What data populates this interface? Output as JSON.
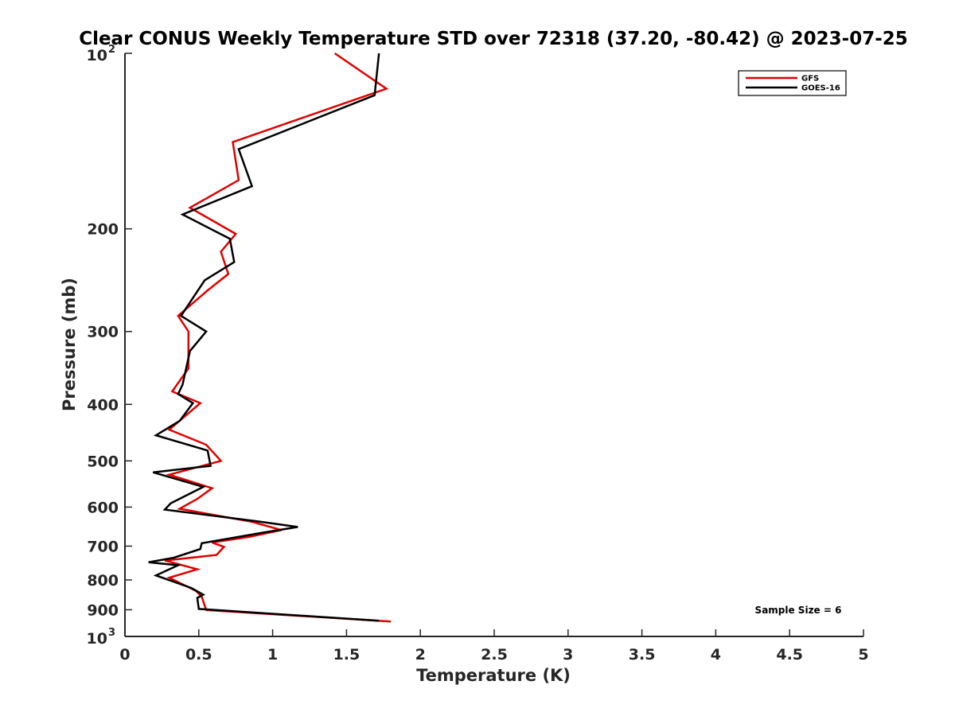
{
  "chart_data": {
    "type": "line",
    "title": "Clear CONUS Weekly Temperature STD over 72318 (37.20, -80.42) @ 2023-07-25",
    "xlabel": "Temperature (K)",
    "ylabel": "Pressure (mb)",
    "xlim": [
      0,
      5
    ],
    "ylim": [
      100,
      1000
    ],
    "y_scale": "log",
    "y_reversed": true,
    "grid": false,
    "legend_position": "top-right",
    "x_ticks": [
      "0",
      "0.5",
      "1",
      "1.5",
      "2",
      "2.5",
      "3",
      "3.5",
      "4",
      "4.5",
      "5"
    ],
    "y_ticks": [
      {
        "value": 100,
        "base": "10",
        "exp": "2"
      },
      {
        "value": 200,
        "label": "200"
      },
      {
        "value": 300,
        "label": "300"
      },
      {
        "value": 400,
        "label": "400"
      },
      {
        "value": 500,
        "label": "500"
      },
      {
        "value": 600,
        "label": "600"
      },
      {
        "value": 700,
        "label": "700"
      },
      {
        "value": 800,
        "label": "800"
      },
      {
        "value": 900,
        "label": "900"
      },
      {
        "value": 1000,
        "base": "10",
        "exp": "3"
      }
    ],
    "annotation": "Sample Size = 6",
    "series": [
      {
        "name": "GFS",
        "color": "#e00000",
        "points": [
          [
            1.42,
            100
          ],
          [
            1.77,
            115
          ],
          [
            0.73,
            142
          ],
          [
            0.77,
            165
          ],
          [
            0.44,
            184
          ],
          [
            0.75,
            204
          ],
          [
            0.65,
            219
          ],
          [
            0.7,
            239
          ],
          [
            0.56,
            255
          ],
          [
            0.36,
            282
          ],
          [
            0.43,
            300
          ],
          [
            0.43,
            347
          ],
          [
            0.32,
            380
          ],
          [
            0.51,
            398
          ],
          [
            0.3,
            442
          ],
          [
            0.55,
            469
          ],
          [
            0.65,
            500
          ],
          [
            0.3,
            528
          ],
          [
            0.59,
            557
          ],
          [
            0.49,
            581
          ],
          [
            0.37,
            604
          ],
          [
            0.86,
            636
          ],
          [
            1.06,
            657
          ],
          [
            0.84,
            675
          ],
          [
            0.59,
            690
          ],
          [
            0.67,
            702
          ],
          [
            0.62,
            725
          ],
          [
            0.27,
            741
          ],
          [
            0.49,
            767
          ],
          [
            0.3,
            793
          ],
          [
            0.48,
            835
          ],
          [
            0.52,
            855
          ],
          [
            0.55,
            901
          ],
          [
            1.8,
            943
          ]
        ]
      },
      {
        "name": "GOES-16",
        "color": "#000000",
        "points": [
          [
            1.72,
            100
          ],
          [
            1.69,
            118
          ],
          [
            0.77,
            146
          ],
          [
            0.86,
            169
          ],
          [
            0.39,
            189
          ],
          [
            0.71,
            208
          ],
          [
            0.74,
            228
          ],
          [
            0.54,
            245
          ],
          [
            0.38,
            282
          ],
          [
            0.55,
            300
          ],
          [
            0.44,
            324
          ],
          [
            0.39,
            370
          ],
          [
            0.36,
            384
          ],
          [
            0.46,
            398
          ],
          [
            0.37,
            427
          ],
          [
            0.21,
            452
          ],
          [
            0.56,
            480
          ],
          [
            0.58,
            510
          ],
          [
            0.19,
            523
          ],
          [
            0.53,
            554
          ],
          [
            0.31,
            591
          ],
          [
            0.27,
            606
          ],
          [
            0.9,
            635
          ],
          [
            1.17,
            649
          ],
          [
            0.93,
            664
          ],
          [
            0.52,
            692
          ],
          [
            0.51,
            708
          ],
          [
            0.33,
            733
          ],
          [
            0.16,
            746
          ],
          [
            0.36,
            755
          ],
          [
            0.21,
            786
          ],
          [
            0.45,
            826
          ],
          [
            0.53,
            848
          ],
          [
            0.49,
            859
          ],
          [
            0.5,
            897
          ],
          [
            1.72,
            940
          ]
        ]
      }
    ]
  }
}
